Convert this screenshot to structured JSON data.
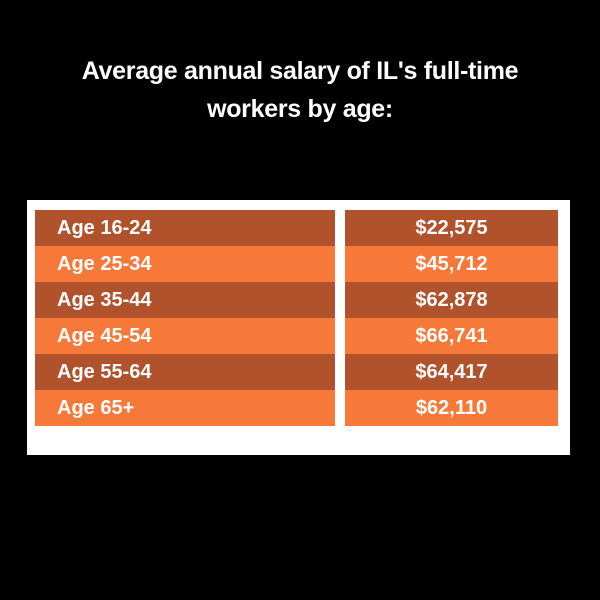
{
  "header": {
    "title_lines": [
      "Average annual salary of IL's full-time",
      "workers by age:"
    ]
  },
  "table": {
    "rows": [
      [
        "Age 16-24",
        "$22,575"
      ],
      [
        "Age 25-34",
        "$45,712"
      ],
      [
        "Age 35-44",
        "$62,878"
      ],
      [
        "Age 45-54",
        "$66,741"
      ],
      [
        "Age 55-64",
        "$64,417"
      ],
      [
        "Age 65+",
        "$62,110"
      ]
    ]
  }
}
